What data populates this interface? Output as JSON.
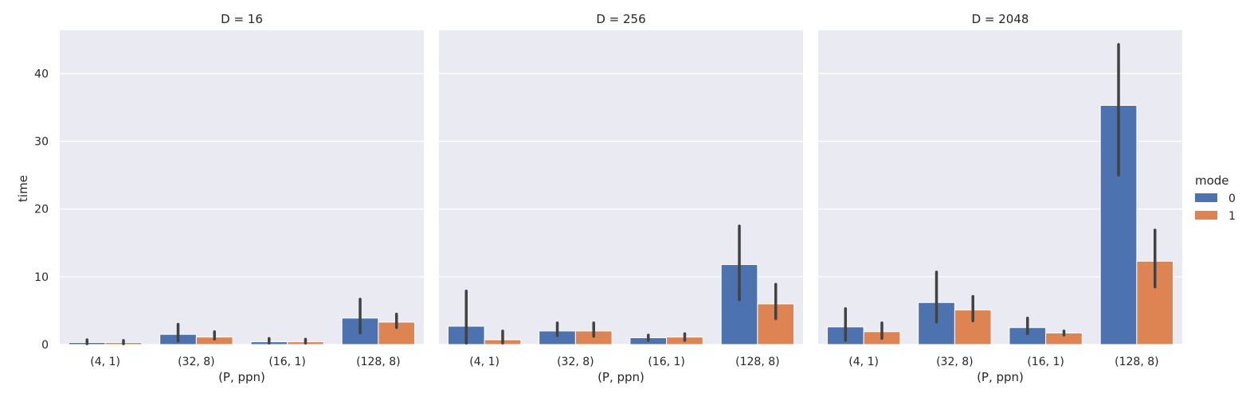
{
  "chart_data": {
    "type": "bar",
    "ylabel": "time",
    "yticks": [
      "0",
      "10",
      "20",
      "30",
      "40"
    ],
    "ylim": [
      0,
      46.4
    ],
    "categories": [
      "(4, 1)",
      "(32, 8)",
      "(16, 1)",
      "(128, 8)"
    ],
    "legend": {
      "title": "mode",
      "entries": [
        {
          "name": "0",
          "color": "#4c72b0"
        },
        {
          "name": "1",
          "color": "#dd8452"
        }
      ]
    },
    "panels": [
      {
        "title": "D = 16",
        "xlabel": "(P, ppn)",
        "series": [
          {
            "name": "0",
            "values": [
              0.3,
              1.5,
              0.4,
              3.9
            ],
            "err_low": [
              0.1,
              0.5,
              0.2,
              1.7
            ],
            "err_high": [
              0.7,
              3.0,
              0.9,
              6.7
            ]
          },
          {
            "name": "1",
            "values": [
              0.3,
              1.1,
              0.4,
              3.3
            ],
            "err_low": [
              0.1,
              0.8,
              0.2,
              2.5
            ],
            "err_high": [
              0.6,
              1.9,
              0.8,
              4.5
            ]
          }
        ]
      },
      {
        "title": "D = 256",
        "xlabel": "(P, ppn)",
        "series": [
          {
            "name": "0",
            "values": [
              2.7,
              2.0,
              1.0,
              11.8
            ],
            "err_low": [
              0.2,
              1.3,
              0.6,
              6.6
            ],
            "err_high": [
              7.9,
              3.2,
              1.4,
              17.5
            ]
          },
          {
            "name": "1",
            "values": [
              0.7,
              2.0,
              1.1,
              6.0
            ],
            "err_low": [
              0.2,
              1.2,
              0.6,
              3.8
            ],
            "err_high": [
              2.0,
              3.2,
              1.6,
              8.9
            ]
          }
        ]
      },
      {
        "title": "D = 2048",
        "xlabel": "(P, ppn)",
        "series": [
          {
            "name": "0",
            "values": [
              2.6,
              6.2,
              2.5,
              35.3
            ],
            "err_low": [
              0.6,
              3.3,
              1.6,
              25.0
            ],
            "err_high": [
              5.3,
              10.7,
              3.9,
              44.3
            ]
          },
          {
            "name": "1",
            "values": [
              1.9,
              5.1,
              1.7,
              12.3
            ],
            "err_low": [
              0.9,
              3.5,
              1.4,
              8.5
            ],
            "err_high": [
              3.2,
              7.1,
              2.0,
              16.9
            ]
          }
        ]
      }
    ]
  }
}
